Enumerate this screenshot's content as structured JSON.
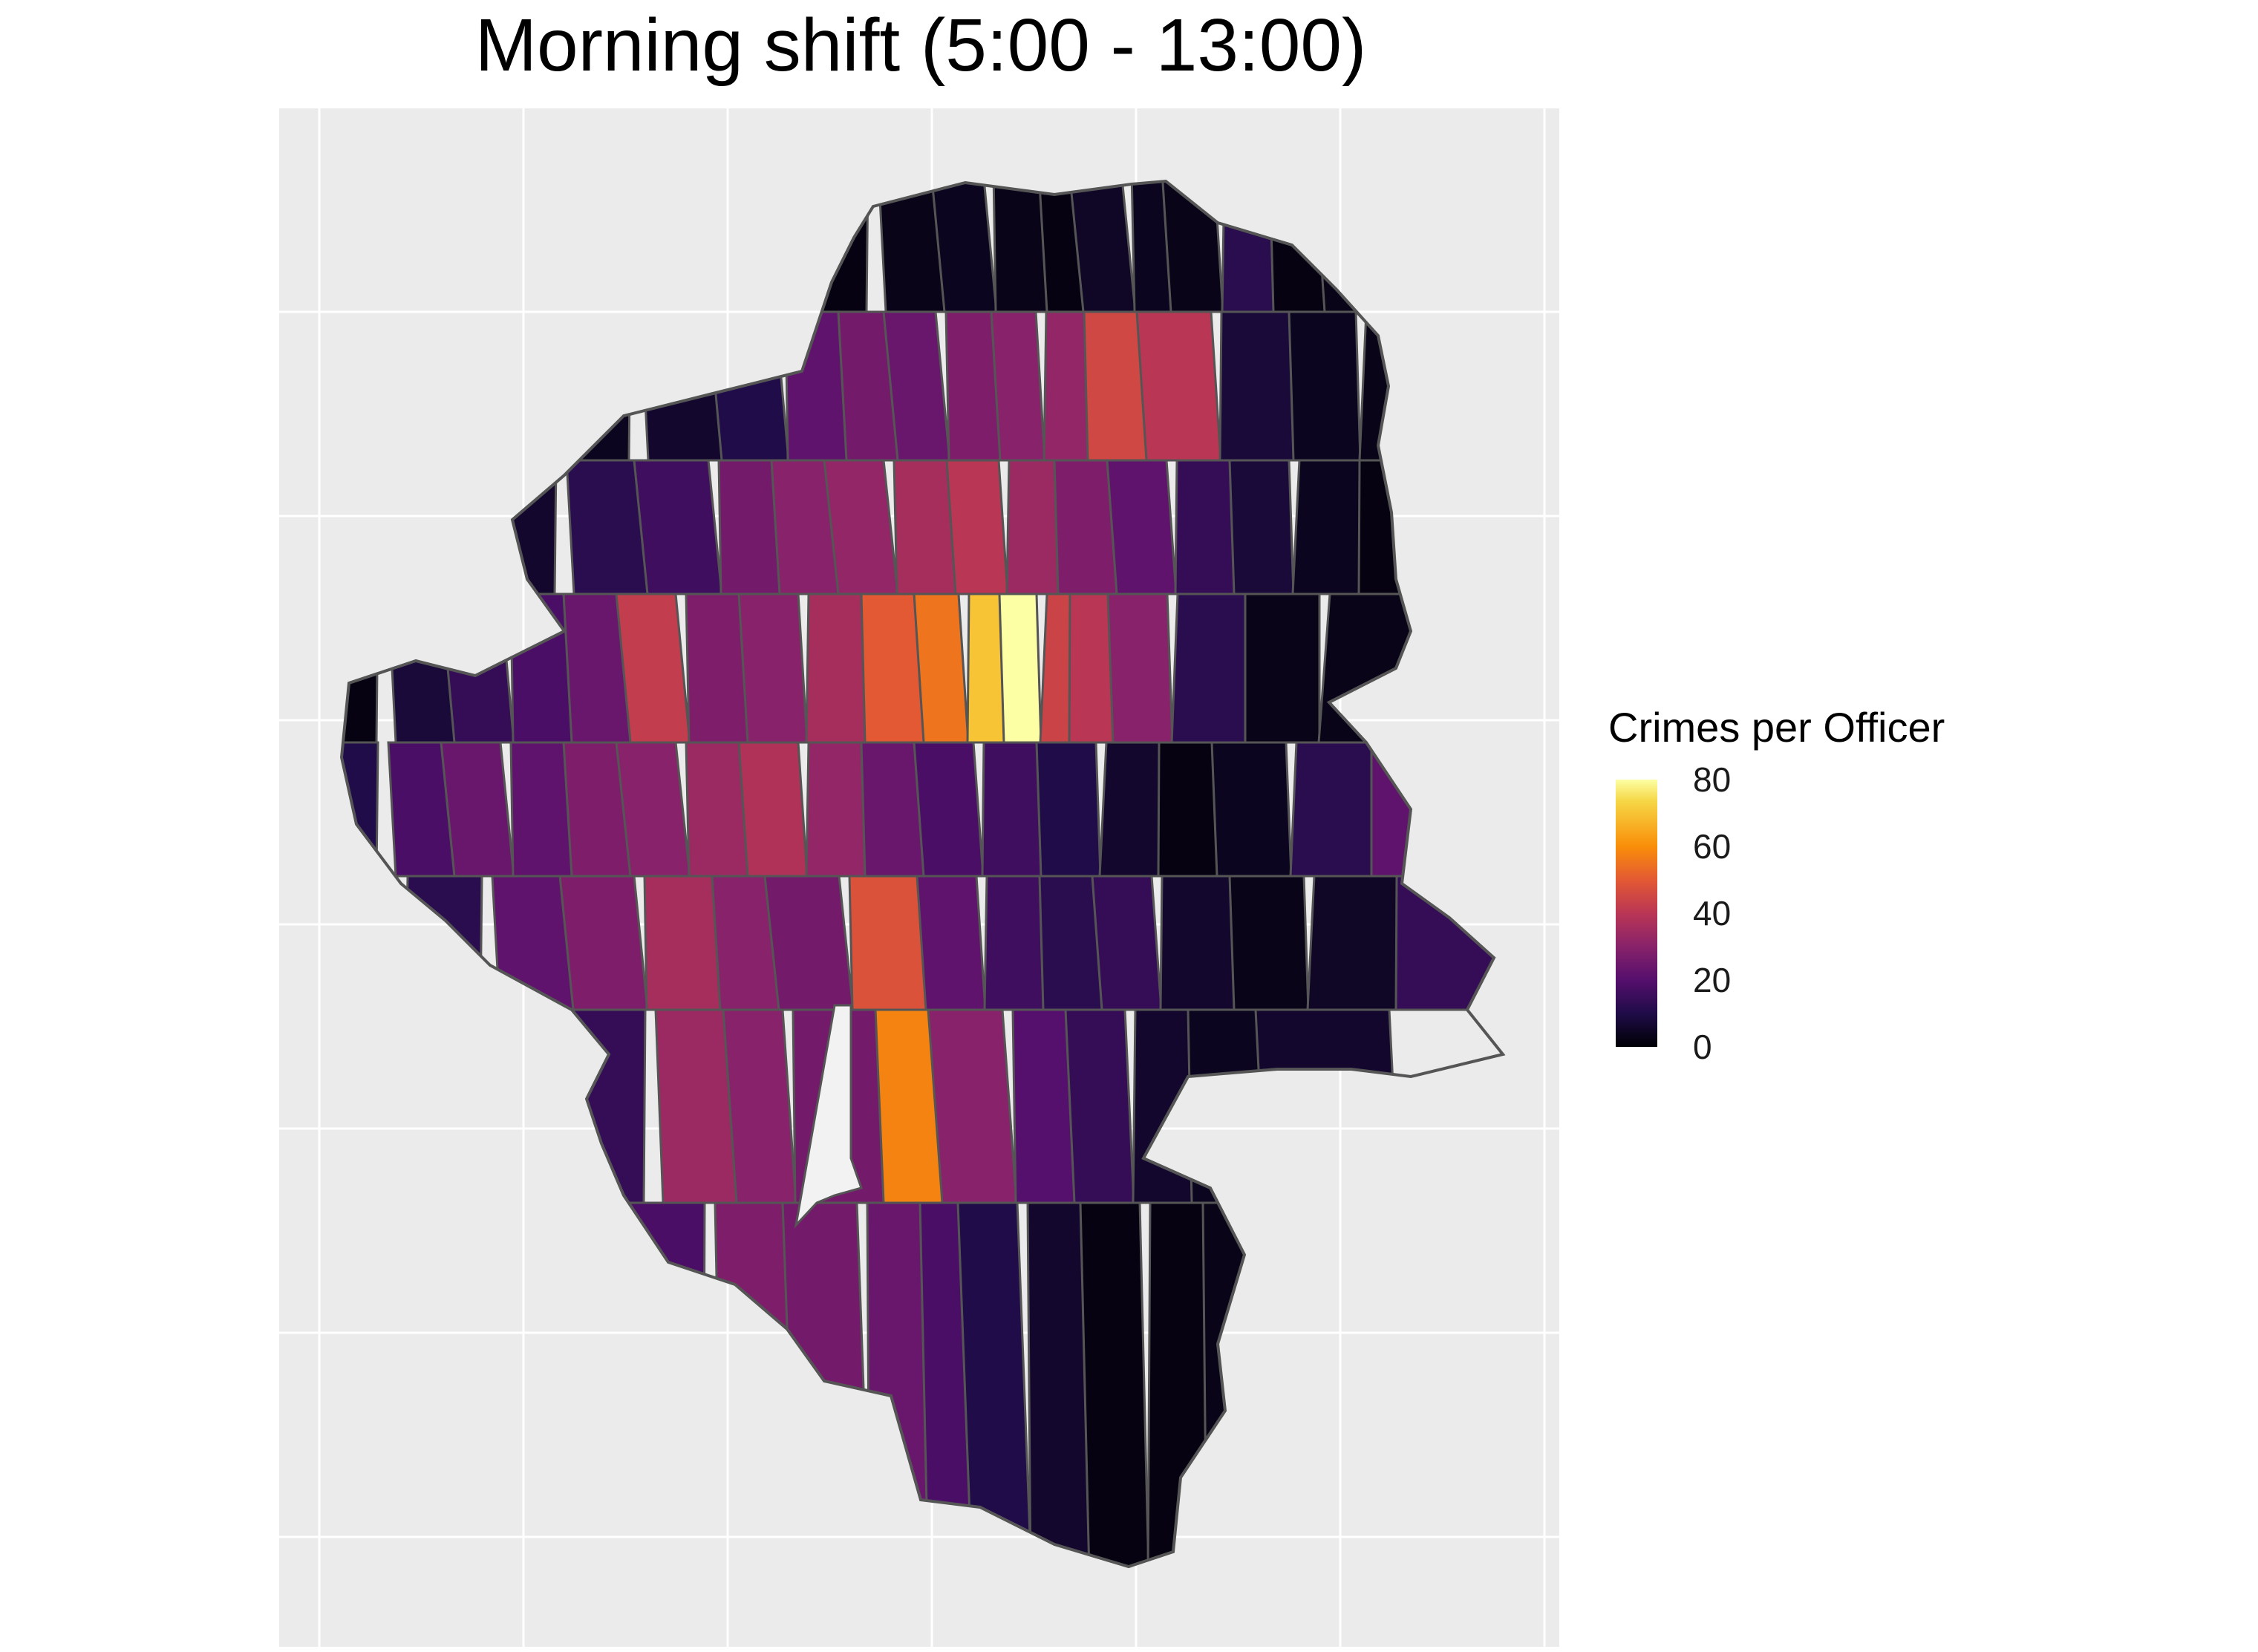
{
  "title": "Morning shift (5:00 - 13:00)",
  "legend": {
    "title": "Crimes per Officer",
    "ticks": [
      "80",
      "60",
      "40",
      "20",
      "0"
    ],
    "tick_values": [
      80,
      60,
      40,
      20,
      0
    ],
    "palette": "inferno",
    "range": [
      0,
      80
    ]
  },
  "panel": {
    "background": "#ebebeb",
    "grid_color": "#ffffff",
    "grid": true
  },
  "map": {
    "border_color": "#555555",
    "district_values": [
      2,
      3,
      4,
      3,
      2,
      5,
      4,
      3,
      12,
      2,
      3,
      2,
      20,
      14,
      18,
      24,
      4,
      6,
      10,
      22,
      26,
      24,
      28,
      30,
      32,
      45,
      40,
      8,
      4,
      3,
      2,
      6,
      12,
      16,
      26,
      30,
      32,
      36,
      40,
      34,
      28,
      22,
      14,
      8,
      4,
      2,
      8,
      14,
      18,
      24,
      42,
      28,
      30,
      36,
      50,
      55,
      70,
      80,
      44,
      40,
      30,
      12,
      3,
      3,
      10,
      18,
      24,
      22,
      28,
      30,
      34,
      38,
      32,
      24,
      18,
      16,
      10,
      6,
      2,
      4,
      12,
      22,
      28,
      36,
      30,
      26,
      48,
      22,
      16,
      12,
      14,
      6,
      3,
      5,
      14,
      34,
      30,
      26,
      58,
      30,
      20,
      14,
      6,
      4,
      6,
      18,
      28,
      26,
      24,
      18,
      10,
      6,
      2
    ]
  }
}
